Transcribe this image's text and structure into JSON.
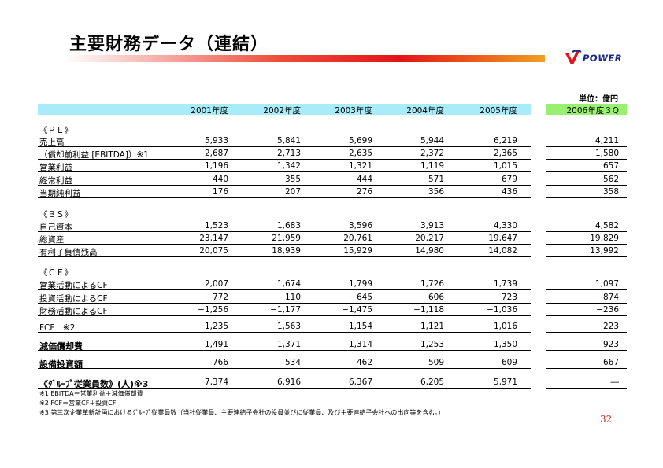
{
  "title": "主要財務データ（連結）",
  "logo": {
    "text": "POWER",
    "brand_color": "#1a2a8c",
    "accent_color": "#e4131b"
  },
  "unit": "単位：億円",
  "columns": [
    "2001年度",
    "2002年度",
    "2003年度",
    "2004年度",
    "2005年度",
    "2006年度３Q"
  ],
  "sections": [
    {
      "heading": "《ＰＬ》",
      "rows": [
        {
          "label": "売上高",
          "values": [
            "5,933",
            "5,841",
            "5,699",
            "5,944",
            "6,219",
            "4,211"
          ],
          "underline": true
        },
        {
          "label": "（償却前利益 [EBITDA]）※1",
          "values": [
            "2,687",
            "2,713",
            "2,635",
            "2,372",
            "2,365",
            "1,580"
          ],
          "underline": true
        },
        {
          "label": "営業利益",
          "values": [
            "1,196",
            "1,342",
            "1,321",
            "1,119",
            "1,015",
            "657"
          ],
          "underline": true
        },
        {
          "label": "経常利益",
          "values": [
            "440",
            "355",
            "444",
            "571",
            "679",
            "562"
          ],
          "underline": true
        },
        {
          "label": "当期純利益",
          "values": [
            "176",
            "207",
            "276",
            "356",
            "436",
            "358"
          ],
          "underline": true
        }
      ]
    },
    {
      "heading": "《ＢＳ》",
      "rows": [
        {
          "label": "自己資本",
          "values": [
            "1,523",
            "1,683",
            "3,596",
            "3,913",
            "4,330",
            "4,582"
          ],
          "underline": true
        },
        {
          "label": "総資産",
          "values": [
            "23,147",
            "21,959",
            "20,761",
            "20,217",
            "19,647",
            "19,829"
          ],
          "underline": true
        },
        {
          "label": "有利子負債残高",
          "values": [
            "20,075",
            "18,939",
            "15,929",
            "14,980",
            "14,082",
            "13,992"
          ],
          "underline": true
        }
      ]
    },
    {
      "heading": "《ＣＦ》",
      "rows": [
        {
          "label": "営業活動によるCF",
          "values": [
            "2,007",
            "1,674",
            "1,799",
            "1,726",
            "1,739",
            "1,097"
          ],
          "underline": true
        },
        {
          "label": "投資活動によるCF",
          "values": [
            "−772",
            "−110",
            "−645",
            "−606",
            "−723",
            "−874"
          ],
          "underline": true
        },
        {
          "label": "財務活動によるCF",
          "values": [
            "−1,256",
            "−1,177",
            "−1,475",
            "−1,118",
            "−1,036",
            "−236"
          ],
          "underline": true
        }
      ]
    },
    {
      "heading": "",
      "rows": [
        {
          "label": "FCF　※2",
          "values": [
            "1,235",
            "1,563",
            "1,154",
            "1,121",
            "1,016",
            "223"
          ],
          "underline": true,
          "gap": true
        },
        {
          "label": "減価償却費",
          "values": [
            "1,491",
            "1,371",
            "1,314",
            "1,253",
            "1,350",
            "923"
          ],
          "underline": true,
          "gap": true,
          "bold": true
        },
        {
          "label": "設備投資額",
          "values": [
            "766",
            "534",
            "462",
            "509",
            "609",
            "667"
          ],
          "underline": true,
          "gap": true,
          "bold": true
        },
        {
          "label": "《ｸﾞﾙｰﾌﾟ従業員数》(人)※3",
          "values": [
            "7,374",
            "6,916",
            "6,367",
            "6,205",
            "5,971",
            "―"
          ],
          "underline": true,
          "gap": true,
          "bold": true
        }
      ]
    }
  ],
  "footnotes": [
    "※1 EBITDA＝営業利益＋減価償却費",
    "※2 FCF＝営業CF＋投資CF",
    "※3 第三次企業革新計画におけるｸﾞﾙｰﾌﾟ従業員数（当社従業員、主要連結子会社の役員並びに従業員、及び主要連結子会社への出向等を含む。）"
  ],
  "page_number": "32"
}
